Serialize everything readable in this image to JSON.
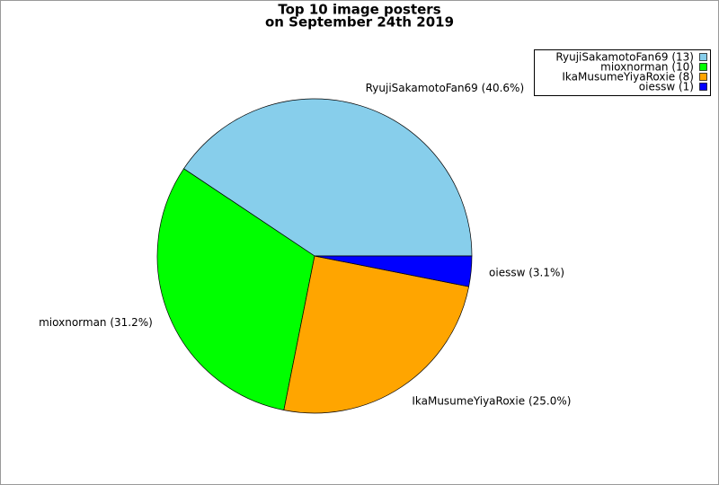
{
  "chart_data": {
    "type": "pie",
    "title": [
      "Top 10 image posters",
      "on September 24th 2019"
    ],
    "categories": [
      "RyujiSakamotoFan69",
      "mioxnorman",
      "IkaMusumeYiyaRoxie",
      "oiessw"
    ],
    "values": [
      13,
      10,
      8,
      1
    ],
    "value_labels": [
      "RyujiSakamotoFan69 (40.6%)",
      "mioxnorman (31.2%)",
      "IkaMusumeYiyaRoxie (25.0%)",
      "oiessw (3.1%)"
    ],
    "legend_labels": [
      "RyujiSakamotoFan69 (13)",
      "mioxnorman (10)",
      "IkaMusumeYiyaRoxie (8)",
      "oiessw (1)"
    ],
    "colors": [
      "#87ceeb",
      "#00ff00",
      "#ffa500",
      "#0000ff"
    ],
    "legend": "top-right"
  }
}
